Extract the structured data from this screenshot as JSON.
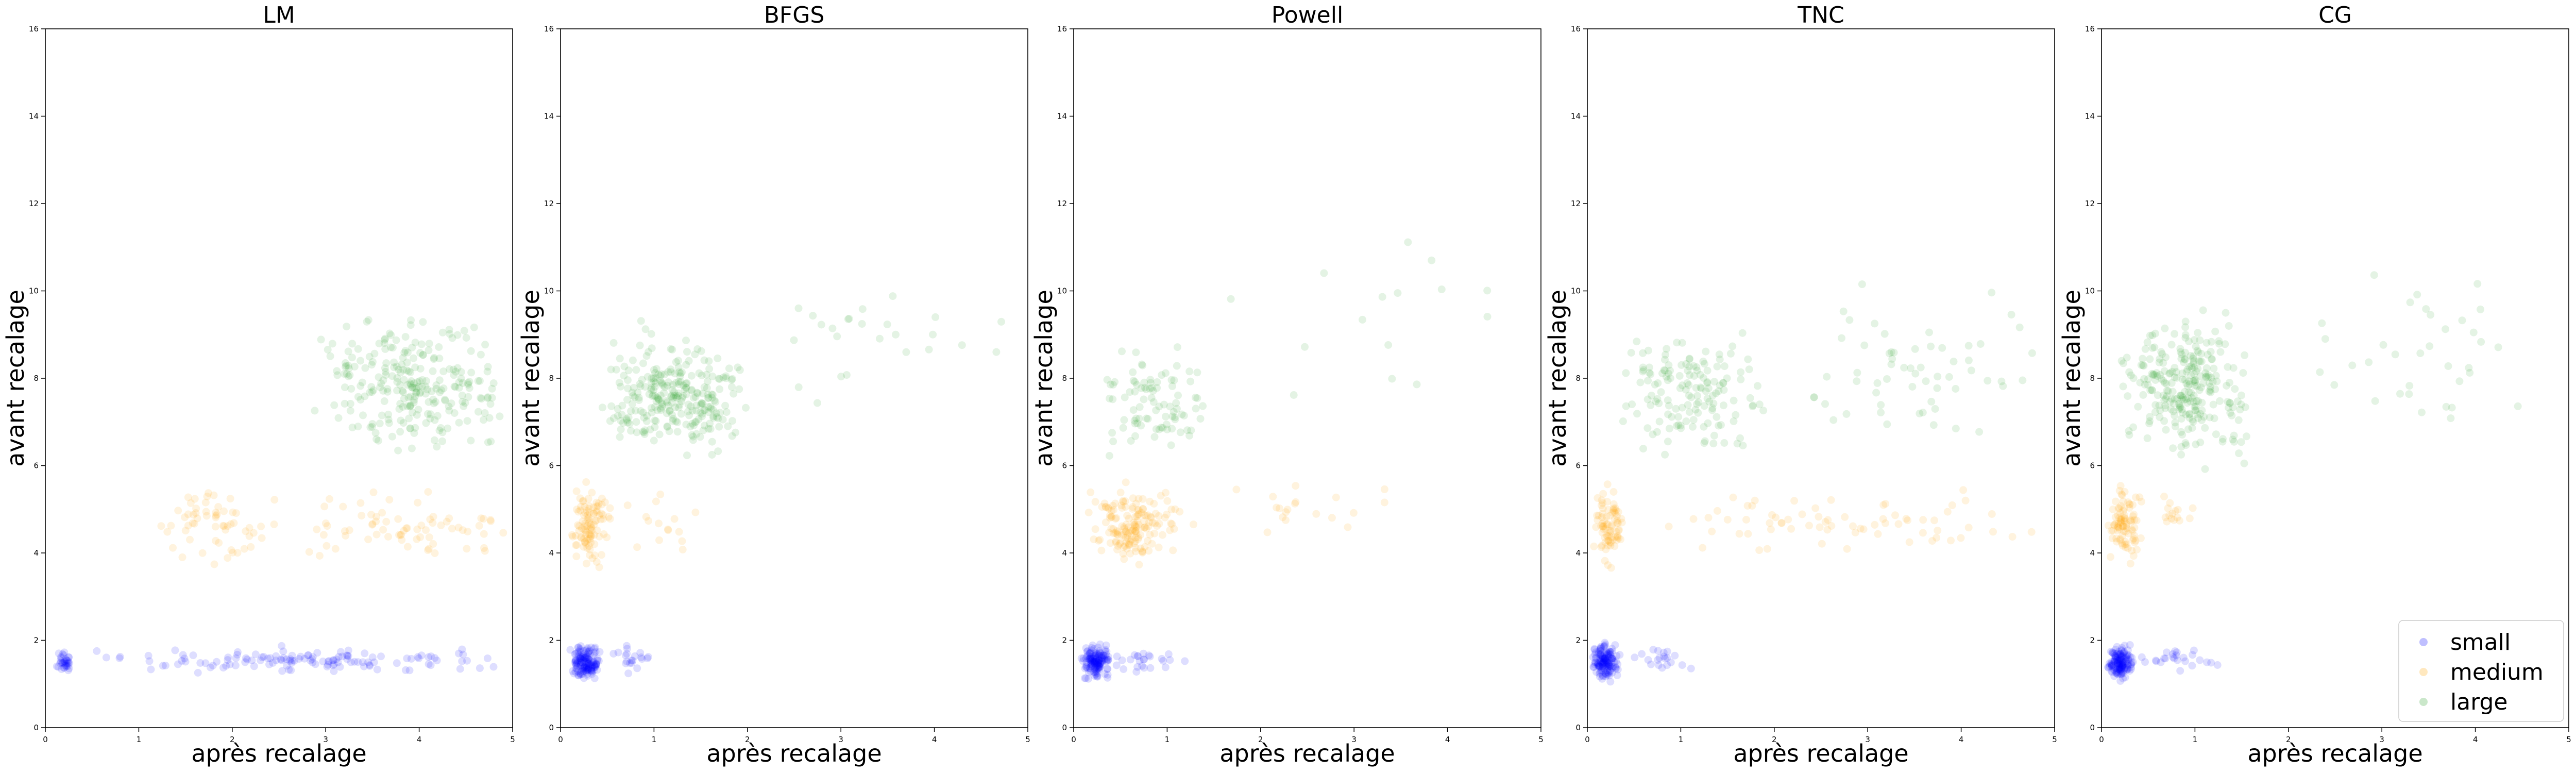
{
  "chart_data": [
    {
      "type": "scatter",
      "title": "LM",
      "xlabel": "après recalage",
      "ylabel": "avant recalage",
      "xlim": [
        0,
        5
      ],
      "ylim": [
        0,
        16
      ],
      "xticks": [
        "0",
        "1",
        "2",
        "3",
        "4",
        "5"
      ],
      "yticks": [
        "0",
        "2",
        "4",
        "6",
        "8",
        "10",
        "12",
        "14",
        "16"
      ],
      "series": [
        {
          "name": "small",
          "clusters": [
            {
              "x_min": 0.1,
              "x_max": 0.3,
              "y_min": 1.2,
              "y_max": 1.8,
              "n": 35
            },
            {
              "x_min": 0.3,
              "x_max": 5.0,
              "y_min": 1.2,
              "y_max": 1.9,
              "n": 130
            }
          ]
        },
        {
          "name": "medium",
          "clusters": [
            {
              "x_min": 1.1,
              "x_max": 2.5,
              "y_min": 3.5,
              "y_max": 5.8,
              "n": 60
            },
            {
              "x_min": 2.8,
              "x_max": 5.0,
              "y_min": 3.5,
              "y_max": 5.6,
              "n": 70
            }
          ]
        },
        {
          "name": "large",
          "clusters": [
            {
              "x_min": 2.8,
              "x_max": 5.0,
              "y_min": 5.8,
              "y_max": 9.8,
              "n": 260
            }
          ]
        }
      ]
    },
    {
      "type": "scatter",
      "title": "BFGS",
      "xlabel": "après recalage",
      "ylabel": "avant recalage",
      "xlim": [
        0,
        5
      ],
      "ylim": [
        0,
        16
      ],
      "xticks": [
        "0",
        "1",
        "2",
        "3",
        "4",
        "5"
      ],
      "yticks": [
        "0",
        "2",
        "4",
        "6",
        "8",
        "10",
        "12",
        "14",
        "16"
      ],
      "series": [
        {
          "name": "small",
          "clusters": [
            {
              "x_min": 0.08,
              "x_max": 0.45,
              "y_min": 1.0,
              "y_max": 2.0,
              "n": 150
            },
            {
              "x_min": 0.45,
              "x_max": 1.0,
              "y_min": 1.2,
              "y_max": 2.0,
              "n": 20
            }
          ]
        },
        {
          "name": "medium",
          "clusters": [
            {
              "x_min": 0.1,
              "x_max": 0.55,
              "y_min": 3.5,
              "y_max": 5.8,
              "n": 100
            },
            {
              "x_min": 0.55,
              "x_max": 1.5,
              "y_min": 3.8,
              "y_max": 5.6,
              "n": 15
            }
          ]
        },
        {
          "name": "large",
          "clusters": [
            {
              "x_min": 0.4,
              "x_max": 2.0,
              "y_min": 5.8,
              "y_max": 9.5,
              "n": 280
            },
            {
              "x_min": 2.0,
              "x_max": 5.0,
              "y_min": 6.5,
              "y_max": 11.0,
              "n": 25
            }
          ]
        }
      ]
    },
    {
      "type": "scatter",
      "title": "Powell",
      "xlabel": "après recalage",
      "ylabel": "avant recalage",
      "xlim": [
        0,
        5
      ],
      "ylim": [
        0,
        16
      ],
      "xticks": [
        "0",
        "1",
        "2",
        "3",
        "4",
        "5"
      ],
      "yticks": [
        "0",
        "2",
        "4",
        "6",
        "8",
        "10",
        "12",
        "14",
        "16"
      ],
      "series": [
        {
          "name": "small",
          "clusters": [
            {
              "x_min": 0.08,
              "x_max": 0.4,
              "y_min": 1.0,
              "y_max": 2.0,
              "n": 150
            },
            {
              "x_min": 0.4,
              "x_max": 1.2,
              "y_min": 1.2,
              "y_max": 2.0,
              "n": 25
            }
          ]
        },
        {
          "name": "medium",
          "clusters": [
            {
              "x_min": 0.1,
              "x_max": 1.2,
              "y_min": 3.5,
              "y_max": 5.8,
              "n": 160
            },
            {
              "x_min": 1.2,
              "x_max": 3.5,
              "y_min": 4.0,
              "y_max": 5.8,
              "n": 20
            }
          ]
        },
        {
          "name": "large",
          "clusters": [
            {
              "x_min": 0.2,
              "x_max": 1.5,
              "y_min": 5.8,
              "y_max": 9.0,
              "n": 90
            },
            {
              "x_min": 1.5,
              "x_max": 5.0,
              "y_min": 6.0,
              "y_max": 12.5,
              "n": 15
            }
          ]
        }
      ]
    },
    {
      "type": "scatter",
      "title": "TNC",
      "xlabel": "après recalage",
      "ylabel": "avant recalage",
      "xlim": [
        0,
        5
      ],
      "ylim": [
        0,
        16
      ],
      "xticks": [
        "0",
        "1",
        "2",
        "3",
        "4",
        "5"
      ],
      "yticks": [
        "0",
        "2",
        "4",
        "6",
        "8",
        "10",
        "12",
        "14",
        "16"
      ],
      "series": [
        {
          "name": "small",
          "clusters": [
            {
              "x_min": 0.05,
              "x_max": 0.35,
              "y_min": 1.0,
              "y_max": 2.0,
              "n": 150
            },
            {
              "x_min": 0.35,
              "x_max": 1.2,
              "y_min": 1.2,
              "y_max": 2.0,
              "n": 20
            }
          ]
        },
        {
          "name": "medium",
          "clusters": [
            {
              "x_min": 0.05,
              "x_max": 0.4,
              "y_min": 3.5,
              "y_max": 5.8,
              "n": 80
            },
            {
              "x_min": 0.4,
              "x_max": 5.0,
              "y_min": 3.8,
              "y_max": 5.6,
              "n": 70
            }
          ]
        },
        {
          "name": "large",
          "clusters": [
            {
              "x_min": 0.3,
              "x_max": 2.0,
              "y_min": 5.8,
              "y_max": 9.5,
              "n": 150
            },
            {
              "x_min": 2.0,
              "x_max": 5.0,
              "y_min": 6.0,
              "y_max": 10.5,
              "n": 60
            }
          ]
        }
      ]
    },
    {
      "type": "scatter",
      "title": "CG",
      "xlabel": "après recalage",
      "ylabel": "avant recalage",
      "xlim": [
        0,
        5
      ],
      "ylim": [
        0,
        16
      ],
      "xticks": [
        "0",
        "1",
        "2",
        "3",
        "4",
        "5"
      ],
      "yticks": [
        "0",
        "2",
        "4",
        "6",
        "8",
        "10",
        "12",
        "14",
        "16"
      ],
      "legend": {
        "position": "lower-right",
        "entries": [
          "small",
          "medium",
          "large"
        ]
      },
      "series": [
        {
          "name": "small",
          "clusters": [
            {
              "x_min": 0.05,
              "x_max": 0.35,
              "y_min": 1.0,
              "y_max": 2.0,
              "n": 150
            },
            {
              "x_min": 0.35,
              "x_max": 1.3,
              "y_min": 1.2,
              "y_max": 2.0,
              "n": 25
            }
          ]
        },
        {
          "name": "medium",
          "clusters": [
            {
              "x_min": 0.05,
              "x_max": 0.45,
              "y_min": 3.5,
              "y_max": 5.8,
              "n": 90
            },
            {
              "x_min": 0.45,
              "x_max": 1.0,
              "y_min": 4.2,
              "y_max": 5.6,
              "n": 15
            }
          ]
        },
        {
          "name": "large",
          "clusters": [
            {
              "x_min": 0.2,
              "x_max": 1.6,
              "y_min": 5.8,
              "y_max": 9.8,
              "n": 270
            },
            {
              "x_min": 1.6,
              "x_max": 5.0,
              "y_min": 6.0,
              "y_max": 11.2,
              "n": 35
            }
          ]
        }
      ]
    }
  ],
  "colors": {
    "small": "#0000ff",
    "medium": "#ffa500",
    "large": "#2ca02c",
    "axes": "#000000",
    "legend_border": "#cccccc"
  }
}
